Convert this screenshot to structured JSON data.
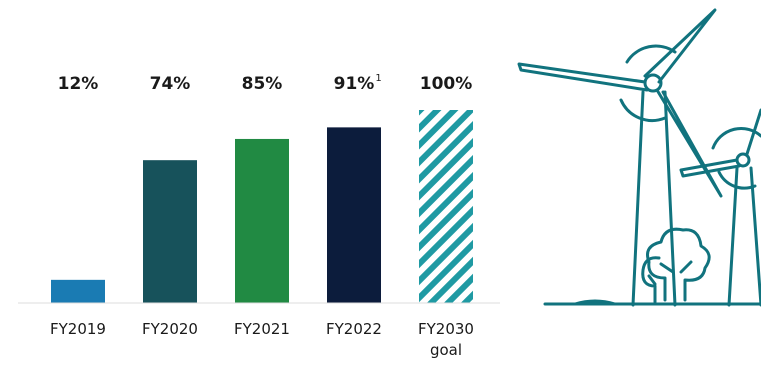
{
  "chart_data": {
    "type": "bar",
    "categories": [
      {
        "label": "FY2019",
        "sub": ""
      },
      {
        "label": "FY2020",
        "sub": ""
      },
      {
        "label": "FY2021",
        "sub": ""
      },
      {
        "label": "FY2022",
        "sub": ""
      },
      {
        "label": "FY2030",
        "sub": "goal"
      }
    ],
    "values": [
      12,
      74,
      85,
      91,
      100
    ],
    "value_labels": [
      "12%",
      "74%",
      "85%",
      "91%",
      "100%"
    ],
    "footnotes": [
      "",
      "",
      "",
      "1",
      ""
    ],
    "colors": [
      "#1a7bb3",
      "#17525b",
      "#218a43",
      "#0c1c3c",
      "#1f9aa3"
    ],
    "hatched": [
      false,
      false,
      false,
      false,
      true
    ],
    "ylim": [
      0,
      100
    ],
    "title": "",
    "xlabel": "",
    "ylabel": ""
  },
  "illustration": {
    "icon": "wind-turbines-icon",
    "color": "#11737e"
  }
}
